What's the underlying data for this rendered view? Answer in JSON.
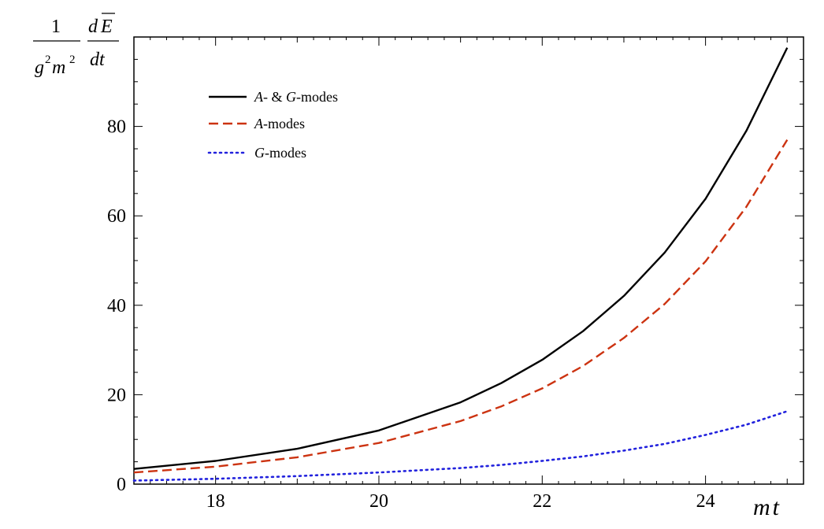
{
  "chart_data": {
    "type": "line",
    "xlabel": "mt",
    "ylabel": {
      "frac1_num": "1",
      "frac1_den_g": "g",
      "frac1_den_m": "m",
      "exp": "2",
      "frac2_num_d": "d",
      "frac2_num_E": "E",
      "frac2_den": "dt"
    },
    "xlim": [
      17,
      25.2
    ],
    "ylim": [
      0,
      100
    ],
    "xticks": [
      18,
      20,
      22,
      24
    ],
    "yticks": [
      0,
      20,
      40,
      60,
      80
    ],
    "grid": false,
    "legend_position": "top-left",
    "series": [
      {
        "name": "A- & G-modes",
        "legend_parts": [
          {
            "t": "A",
            "i": true
          },
          {
            "t": "- & ",
            "i": false
          },
          {
            "t": "G",
            "i": true
          },
          {
            "t": "-modes",
            "i": false
          }
        ],
        "color": "#000000",
        "style": "solid",
        "x": [
          17,
          18,
          19,
          20,
          21,
          21.5,
          22,
          22.5,
          23,
          23.5,
          24,
          24.5,
          25
        ],
        "y": [
          3.4,
          5.2,
          7.9,
          12.0,
          18.3,
          22.6,
          27.8,
          34.2,
          42.1,
          51.8,
          63.8,
          79.0,
          97.6
        ]
      },
      {
        "name": "A-modes",
        "legend_parts": [
          {
            "t": "A",
            "i": true
          },
          {
            "t": "-modes",
            "i": false
          }
        ],
        "color": "#cc3311",
        "style": "dashed",
        "x": [
          17,
          18,
          19,
          20,
          21,
          21.5,
          22,
          22.5,
          23,
          23.5,
          24,
          24.5,
          25
        ],
        "y": [
          2.6,
          3.9,
          6.0,
          9.2,
          14.1,
          17.4,
          21.4,
          26.4,
          32.7,
          40.3,
          49.8,
          62.0,
          77.0
        ]
      },
      {
        "name": "G-modes",
        "legend_parts": [
          {
            "t": "G",
            "i": true
          },
          {
            "t": "-modes",
            "i": false
          }
        ],
        "color": "#2222dd",
        "style": "dotted",
        "x": [
          17,
          18,
          19,
          20,
          21,
          21.5,
          22,
          22.5,
          23,
          23.5,
          24,
          24.5,
          25
        ],
        "y": [
          0.8,
          1.2,
          1.8,
          2.6,
          3.6,
          4.3,
          5.2,
          6.2,
          7.5,
          9.0,
          11.0,
          13.3,
          16.3
        ]
      }
    ]
  }
}
